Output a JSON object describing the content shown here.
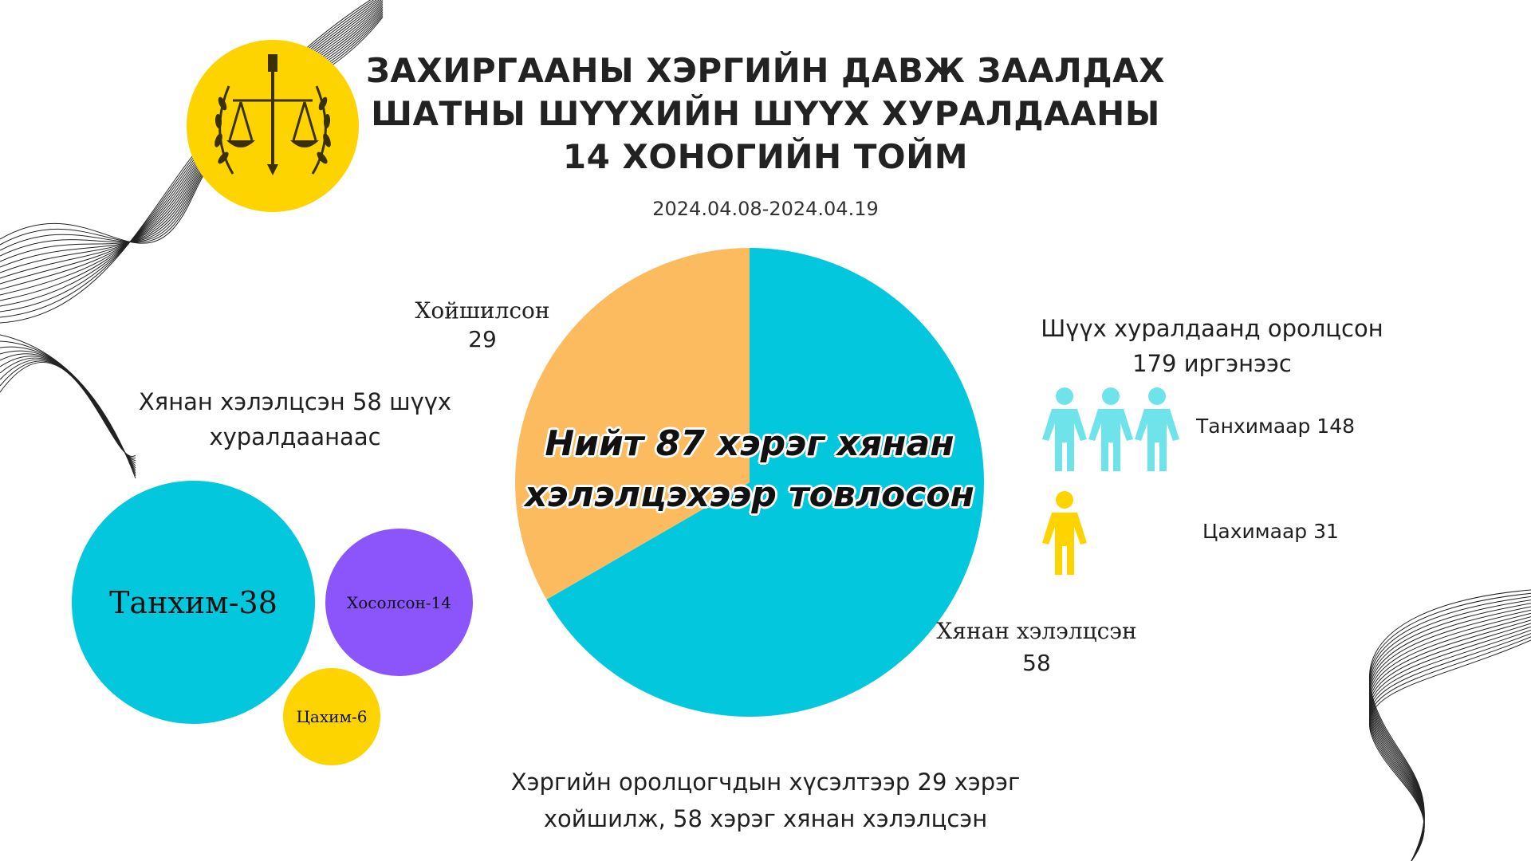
{
  "header": {
    "title_lines": [
      "ЗАХИРГААНЫ ХЭРГИЙН ДАВЖ ЗААЛДАХ",
      "ШАТНЫ ШҮҮХИЙН ШҮҮХ ХУРАЛДААНЫ",
      "14 ХОНОГИЙН ТОЙМ"
    ],
    "date_range": "2024.04.08-2024.04.19"
  },
  "pie": {
    "center_lines": [
      "Нийт 87 хэрэг хянан",
      "хэлэлцэхээр товлосон"
    ],
    "postponed_label": "Хойшилсон",
    "postponed_value": "29",
    "reviewed_label": "Хянан хэлэлцсэн",
    "reviewed_value": "58"
  },
  "left_panel": {
    "caption_lines": [
      "Хянан хэлэлцсэн 58 шүүх",
      "хуралдаанаас"
    ],
    "hall_bubble": "Танхим-38",
    "mixed_bubble": "Хосолсон-14",
    "cyber_bubble": "Цахим-6"
  },
  "right_panel": {
    "caption_lines": [
      "Шүүх хуралдаанд оролцсон",
      "179 иргэнээс"
    ],
    "hall_label": "Танхимаар 148",
    "cyber_label": "Цахимаар 31"
  },
  "footer": {
    "caption_lines": [
      "Хэргийн оролцогчдын хүсэлтээр 29 хэрэг",
      "хойшилж, 58 хэрэг хянан хэлэлцсэн"
    ]
  },
  "colors": {
    "cyan": "#03c7dc",
    "orange": "#fdbb5f",
    "purple": "#8b55fb",
    "yellow": "#fdd400",
    "person_cyan": "#6fe3ea"
  },
  "chart_data": [
    {
      "type": "pie",
      "categories": [
        "Хойшилсон",
        "Хянан хэлэлцсэн"
      ],
      "values": [
        29,
        58
      ],
      "title": "Нийт 87 хэрэг хянан хэлэлцэхээр товлосон"
    },
    {
      "type": "bubble",
      "title": "Хянан хэлэлцсэн 58 шүүх хуралдаанаас",
      "categories": [
        "Танхим",
        "Хосолсон",
        "Цахим"
      ],
      "values": [
        38,
        14,
        6
      ]
    },
    {
      "type": "pictogram",
      "title": "Шүүх хуралдаанд оролцсон 179 иргэнээс",
      "categories": [
        "Танхимаар",
        "Цахимаар"
      ],
      "values": [
        148,
        31
      ]
    }
  ]
}
